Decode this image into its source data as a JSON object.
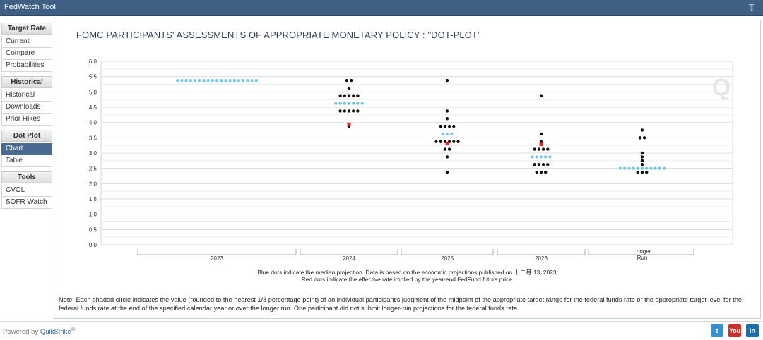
{
  "app": {
    "title": "FedWatch Tool",
    "twitter_icon": "twitter-icon"
  },
  "sidebar": {
    "sections": [
      {
        "header": "Target Rate",
        "items": [
          "Current",
          "Compare",
          "Probabilities"
        ],
        "active": -1
      },
      {
        "header": "Historical",
        "items": [
          "Historical",
          "Downloads",
          "Prior Hikes"
        ],
        "active": -1
      },
      {
        "header": "Dot Plot",
        "items": [
          "Chart",
          "Table"
        ],
        "active": 0
      },
      {
        "header": "Tools",
        "items": [
          "CVOL",
          "SOFR Watch"
        ],
        "active": -1
      }
    ]
  },
  "chart_data": {
    "type": "scatter",
    "title": "FOMC PARTICIPANTS' ASSESSMENTS OF APPROPRIATE MONETARY POLICY : \"DOT-PLOT\"",
    "ylim": [
      0,
      6
    ],
    "yticks": [
      "0.0",
      "0.5",
      "1.0",
      "1.5",
      "2.0",
      "2.5",
      "3.0",
      "3.5",
      "4.0",
      "4.5",
      "5.0",
      "5.5",
      "6.0"
    ],
    "categories": [
      "2023",
      "2024",
      "2025",
      "2026",
      "Longer\nRun"
    ],
    "grid": true,
    "colors": {
      "participant": "#111111",
      "median": "#6ec6e6",
      "future": "#e02020"
    },
    "participant_dots": [
      {
        "category": "2024",
        "rate": 5.375,
        "count": 2
      },
      {
        "category": "2024",
        "rate": 5.125,
        "count": 1
      },
      {
        "category": "2024",
        "rate": 4.875,
        "count": 5
      },
      {
        "category": "2024",
        "rate": 4.375,
        "count": 5
      },
      {
        "category": "2024",
        "rate": 3.875,
        "count": 1
      },
      {
        "category": "2025",
        "rate": 5.375,
        "count": 1
      },
      {
        "category": "2025",
        "rate": 4.375,
        "count": 1
      },
      {
        "category": "2025",
        "rate": 4.125,
        "count": 1
      },
      {
        "category": "2025",
        "rate": 3.875,
        "count": 4
      },
      {
        "category": "2025",
        "rate": 3.375,
        "count": 6
      },
      {
        "category": "2025",
        "rate": 3.125,
        "count": 2
      },
      {
        "category": "2025",
        "rate": 2.875,
        "count": 1
      },
      {
        "category": "2025",
        "rate": 2.375,
        "count": 1
      },
      {
        "category": "2026",
        "rate": 4.875,
        "count": 1
      },
      {
        "category": "2026",
        "rate": 3.625,
        "count": 1
      },
      {
        "category": "2026",
        "rate": 3.375,
        "count": 1
      },
      {
        "category": "2026",
        "rate": 3.125,
        "count": 4
      },
      {
        "category": "2026",
        "rate": 2.625,
        "count": 4
      },
      {
        "category": "2026",
        "rate": 2.375,
        "count": 3
      },
      {
        "category": "Longer\nRun",
        "rate": 3.75,
        "count": 1
      },
      {
        "category": "Longer\nRun",
        "rate": 3.5,
        "count": 2
      },
      {
        "category": "Longer\nRun",
        "rate": 3.0,
        "count": 1
      },
      {
        "category": "Longer\nRun",
        "rate": 2.875,
        "count": 1
      },
      {
        "category": "Longer\nRun",
        "rate": 2.75,
        "count": 1
      },
      {
        "category": "Longer\nRun",
        "rate": 2.625,
        "count": 1
      },
      {
        "category": "Longer\nRun",
        "rate": 2.375,
        "count": 3
      }
    ],
    "median_dots": [
      {
        "category": "2023",
        "rate": 5.375,
        "count": 19
      },
      {
        "category": "2024",
        "rate": 4.625,
        "count": 7
      },
      {
        "category": "2025",
        "rate": 3.625,
        "count": 3
      },
      {
        "category": "2026",
        "rate": 2.875,
        "count": 5
      },
      {
        "category": "Longer\nRun",
        "rate": 2.5,
        "count": 11
      }
    ],
    "future_dots": [
      {
        "category": "2024",
        "rate": 3.94
      },
      {
        "category": "2025",
        "rate": 3.32
      },
      {
        "category": "2026",
        "rate": 3.28
      }
    ],
    "caption_line1": "Blue dots indicate the median projection. Data is based on the economic projections published on 十二月 13, 2023.",
    "caption_line2": "Red dots indicate the effective rate implied by the year-end FedFund future price."
  },
  "note": "Note: Each shaded circle indicates the value (rounded to the nearest 1/8 percentage point) of an individual participant's judgment of the midpoint of the appropriate target range for the federal funds rate or the appropriate target level for the federal funds rate at the end of the specified calendar year or over the longer run. One participant did not submit longer-run projections for the federal funds rate.",
  "footer": {
    "powered_prefix": "Powered by ",
    "powered_brand": "QuikStrike",
    "powered_mark": "®",
    "social": [
      {
        "icon": "twitter-icon",
        "label": "t",
        "color": "#3a8fd0"
      },
      {
        "icon": "youtube-icon",
        "label": "You",
        "color": "#c9302c"
      },
      {
        "icon": "linkedin-icon",
        "label": "in",
        "color": "#1a6fa8"
      }
    ]
  }
}
